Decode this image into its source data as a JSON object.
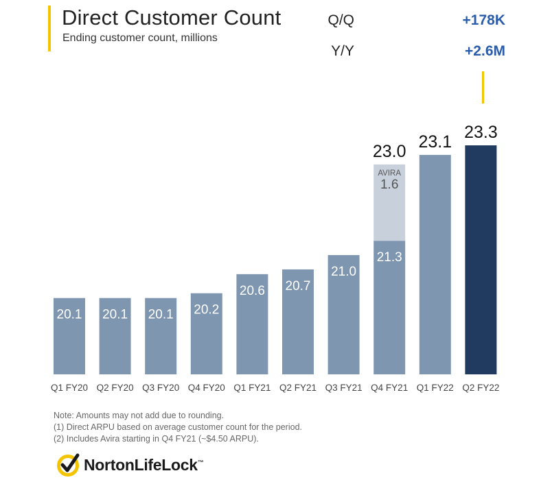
{
  "header": {
    "title": "Direct Customer Count",
    "subtitle": "Ending customer count, millions"
  },
  "metrics": {
    "qq_label": "Q/Q",
    "qq_value": "+178K",
    "yy_label": "Y/Y",
    "yy_value": "+2.6M"
  },
  "chart_data": {
    "type": "bar",
    "title": "Direct Customer Count",
    "subtitle": "Ending customer count, millions",
    "xlabel": "",
    "ylabel": "",
    "categories": [
      "Q1 FY20",
      "Q2 FY20",
      "Q3 FY20",
      "Q4 FY20",
      "Q1 FY21",
      "Q2 FY21",
      "Q3 FY21",
      "Q4 FY21",
      "Q1 FY22",
      "Q2 FY22"
    ],
    "values": [
      20.1,
      20.1,
      20.1,
      20.2,
      20.6,
      20.7,
      21.0,
      21.3,
      23.1,
      23.3
    ],
    "labels": [
      "20.1",
      "20.1",
      "20.1",
      "20.2",
      "20.6",
      "20.7",
      "21.0",
      "21.3",
      "23.1",
      "23.3"
    ],
    "stacked_segment": {
      "category": "Q4 FY21",
      "name": "AVIRA",
      "value": 1.6,
      "label": "1.6",
      "total": 23.0,
      "total_label": "23.0"
    },
    "highlight_category": "Q2 FY22",
    "ylim": [
      18.5,
      23.3
    ],
    "grid": false,
    "colors": {
      "bar": "#7f96b1",
      "highlight": "#213a5f",
      "avira": "#c8d0db",
      "label_inside": "#ffffff",
      "avira_text": "#555555",
      "label_above": "#111111",
      "tick": "#444444"
    }
  },
  "notes": {
    "line1": "Note: Amounts may not add due to rounding.",
    "line2": "(1)  Direct ARPU based on average customer count for the period.",
    "line3": "(2)  Includes Avira starting in Q4 FY21 (~$4.50 ARPU)."
  },
  "logo": {
    "text": "NortonLifeLock",
    "tm": "™",
    "icon": "norton-checkmark-icon",
    "colors": {
      "ring": "#f5c400",
      "check": "#1a1a1a"
    }
  }
}
